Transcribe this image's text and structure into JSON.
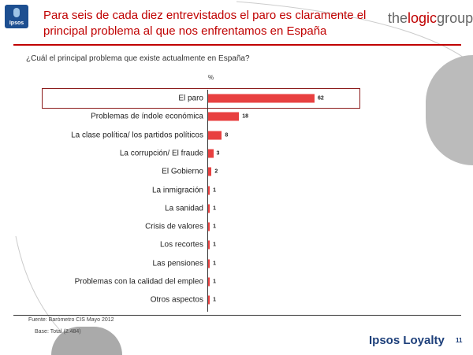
{
  "header": {
    "logo_text": "Ipsos",
    "title": "Para seis de cada diez entrevistados el paro es claramente el principal problema al que nos enfrentamos en España",
    "brand_pre": "the",
    "brand_mid": "logic",
    "brand_post": "group"
  },
  "chart_data": {
    "type": "bar",
    "orientation": "horizontal",
    "title": "¿Cuál el principal problema que existe actualmente en España?",
    "unit_label": "%",
    "categories": [
      "El paro",
      "Problemas de índole económica",
      "La clase política/ los partidos políticos",
      "La corrupción/ El fraude",
      "El Gobierno",
      "La inmigración",
      "La sanidad",
      "Crisis de valores",
      "Los recortes",
      "Las pensiones",
      "Problemas con la calidad del empleo",
      "Otros aspectos"
    ],
    "values": [
      62,
      18,
      8,
      3,
      2,
      1,
      1,
      1,
      1,
      1,
      1,
      1
    ],
    "highlighted": "El paro",
    "bar_color": "#e84040",
    "xlim": [
      0,
      70
    ]
  },
  "footer": {
    "source": "Fuente: Barómetro CIS Mayo 2012",
    "base": "Base: Total (2.484)",
    "brand": "Ipsos Loyalty",
    "page": "11"
  }
}
